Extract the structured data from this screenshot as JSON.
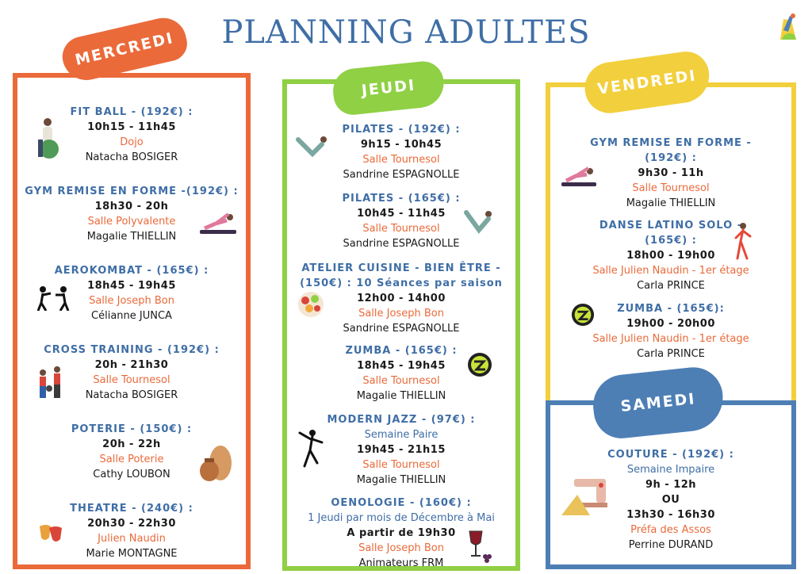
{
  "title": "PLANNING ADULTES",
  "days": {
    "mercredi": "MERCREDI",
    "jeudi": "JEUDI",
    "vendredi": "VENDREDI",
    "samedi": "SAMEDI"
  },
  "mercredi": [
    {
      "name": "FIT BALL - (192€) :",
      "time": "10h15 - 11h45",
      "room": "Dojo",
      "person": "Natacha BOSIGER",
      "icon": "fitball-icon"
    },
    {
      "name": "GYM REMISE EN FORME -(192€) :",
      "time": "18h30 - 20h",
      "room": "Salle Polyvalente",
      "person": "Magalie THIELLIN",
      "icon": "gym-icon"
    },
    {
      "name": "AEROKOMBAT - (165€) :",
      "time": "18h45 - 19h45",
      "room": "Salle Joseph Bon",
      "person": "Célianne JUNCA",
      "icon": "boxing-icon"
    },
    {
      "name": "CROSS TRAINING - (192€) :",
      "time": "20h - 21h30",
      "room": "Salle Tournesol",
      "person": "Natacha BOSIGER",
      "icon": "cross-training-icon"
    },
    {
      "name": "POTERIE - (150€) :",
      "time": "20h - 22h",
      "room": "Salle Poterie",
      "person": "Cathy LOUBON",
      "icon": "pottery-icon"
    },
    {
      "name": "THEATRE - (240€) :",
      "time": "20h30 - 22h30",
      "room": "Julien Naudin",
      "person": "Marie MONTAGNE",
      "icon": "theatre-masks-icon"
    }
  ],
  "jeudi": [
    {
      "name": "PILATES - (192€) :",
      "time": "9h15 - 10h45",
      "room": "Salle Tournesol",
      "person": "Sandrine ESPAGNOLLE",
      "icon": "pilates-icon"
    },
    {
      "name": "PILATES - (165€) :",
      "time": "10h45 - 11h45",
      "room": "Salle Tournesol",
      "person": "Sandrine ESPAGNOLLE",
      "icon": "pilates-icon"
    },
    {
      "name": "ATELIER CUISINE - BIEN ÊTRE -",
      "name2": "(150€) : 10 Séances par saison",
      "time": "12h00 - 14h00",
      "room": "Salle Joseph Bon",
      "person": "Sandrine ESPAGNOLLE",
      "icon": "food-icon"
    },
    {
      "name": "ZUMBA - (165€) :",
      "time": "18h45 - 19h45",
      "room": "Salle Tournesol",
      "person": "Magalie THIELLIN",
      "icon": "zumba-icon"
    },
    {
      "name": "MODERN JAZZ - (97€) :",
      "note": "Semaine Paire",
      "time": "19h45 - 21h15",
      "room": "Salle Tournesol",
      "person": "Magalie THIELLIN",
      "icon": "dancer-icon"
    },
    {
      "name": "OENOLOGIE - (160€) :",
      "note": "1 Jeudi par mois de Décembre à Mai",
      "time": "A partir de 19h30",
      "room": "Salle Joseph Bon",
      "person": "Animateurs FRM",
      "icon": "wine-icon"
    }
  ],
  "vendredi": [
    {
      "name": "GYM REMISE EN FORME -",
      "name2": "(192€) :",
      "time": "9h30 - 11h",
      "room": "Salle Tournesol",
      "person": "Magalie THIELLIN",
      "icon": "gym-icon"
    },
    {
      "name": "DANSE LATINO SOLO -",
      "name2": "(165€) :",
      "time": "18h00 - 19h00",
      "room": "Salle Julien Naudin - 1er étage",
      "person": "Carla PRINCE",
      "icon": "latino-dancer-icon"
    },
    {
      "name": "ZUMBA - (165€):",
      "time": "19h00 - 20h00",
      "room": "Salle Julien Naudin - 1er étage",
      "person": "Carla PRINCE",
      "icon": "zumba-icon"
    }
  ],
  "samedi": [
    {
      "name": "COUTURE - (192€) :",
      "note": "Semaine Impaire",
      "time": "9h - 12h",
      "or": "OU",
      "time2": "13h30 - 16h30",
      "room": "Préfa des Assos",
      "person": "Perrine DURAND",
      "icon": "sewing-machine-icon"
    }
  ],
  "colors": {
    "mercredi": "#ea6a3a",
    "jeudi": "#8fd044",
    "vendredi": "#f2cf3c",
    "samedi": "#4d7fb5",
    "title": "#3f6ea6"
  }
}
